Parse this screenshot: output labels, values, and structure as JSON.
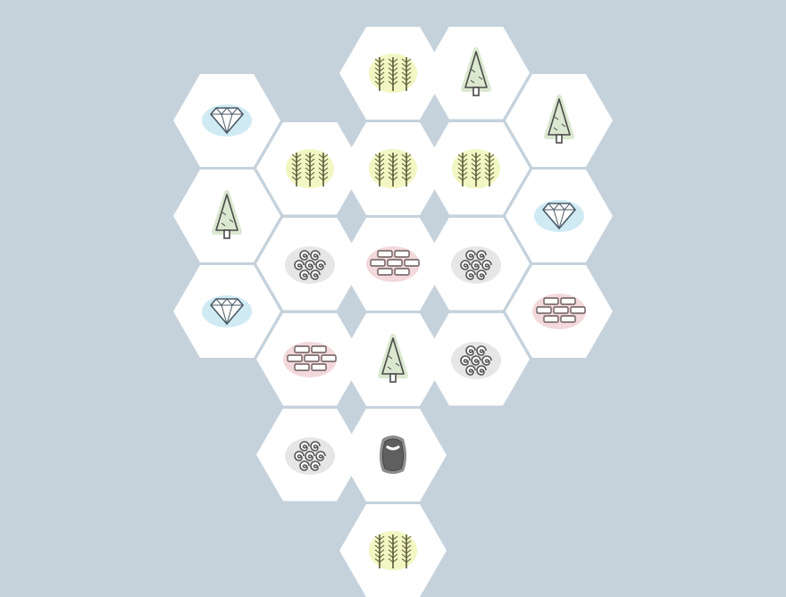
{
  "board": {
    "tiles": [
      {
        "q": 0,
        "r": 0,
        "terrain": "forest",
        "icon": "forest-icon"
      },
      {
        "q": 0,
        "r": 1,
        "terrain": "forest",
        "icon": "forest-icon"
      },
      {
        "q": 1,
        "r": 0,
        "terrain": "pine",
        "icon": "pine-tree-icon"
      },
      {
        "q": -1,
        "r": 1,
        "terrain": "forest",
        "icon": "forest-icon"
      },
      {
        "q": -2,
        "r": 1,
        "terrain": "ore",
        "icon": "diamond-icon"
      },
      {
        "q": -2,
        "r": 2,
        "terrain": "pine",
        "icon": "pine-tree-icon"
      },
      {
        "q": -2,
        "r": 3,
        "terrain": "ore",
        "icon": "diamond-icon"
      },
      {
        "q": -1,
        "r": 2,
        "terrain": "wool",
        "icon": "wool-swirl-icon"
      },
      {
        "q": -1,
        "r": 3,
        "terrain": "brick",
        "icon": "brick-icon"
      },
      {
        "q": -1,
        "r": 4,
        "terrain": "wool",
        "icon": "wool-swirl-icon"
      },
      {
        "q": 0,
        "r": 3,
        "terrain": "pine",
        "icon": "pine-tree-icon"
      },
      {
        "q": 0,
        "r": 4,
        "terrain": "desert",
        "icon": "stone-icon"
      },
      {
        "q": 0,
        "r": 5,
        "terrain": "forest",
        "icon": "forest-icon"
      },
      {
        "q": 0,
        "r": 2,
        "terrain": "brick",
        "icon": "brick-icon"
      },
      {
        "q": 1,
        "r": 1,
        "terrain": "forest",
        "icon": "forest-icon"
      },
      {
        "q": 1,
        "r": 2,
        "terrain": "wool",
        "icon": "wool-swirl-icon"
      },
      {
        "q": 1,
        "r": 3,
        "terrain": "wool",
        "icon": "wool-swirl-icon"
      },
      {
        "q": 2,
        "r": 1,
        "terrain": "pine",
        "icon": "pine-tree-icon"
      },
      {
        "q": 2,
        "r": 2,
        "terrain": "ore",
        "icon": "diamond-icon"
      },
      {
        "q": 2,
        "r": 3,
        "terrain": "brick",
        "icon": "brick-icon"
      }
    ]
  },
  "colors": {
    "background": "#c5d2dc",
    "tile": "#ffffff",
    "forest_tint": "#f2f6c2",
    "pine_tint": "#d9e8cf",
    "ore_tint": "#cfeaf3",
    "brick_tint": "#f3d9dc",
    "wool_tint": "#e6e6e6",
    "stroke": "#4a4a4a"
  }
}
